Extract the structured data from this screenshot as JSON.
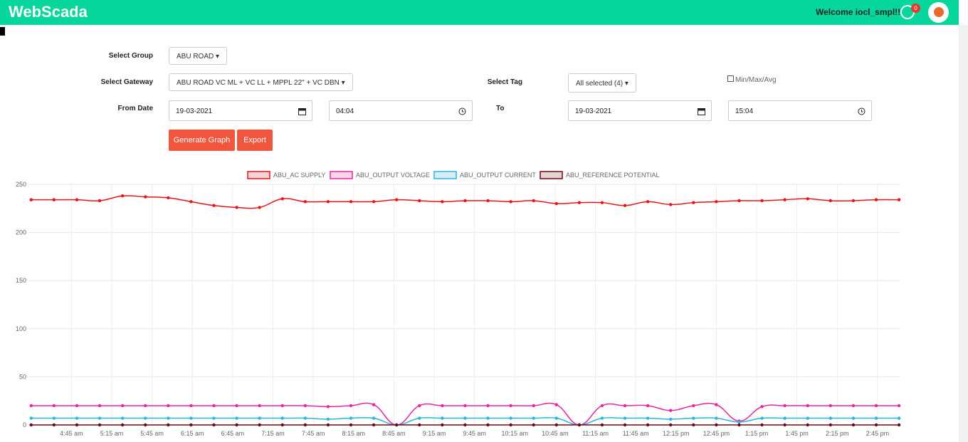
{
  "header": {
    "brand": "WebScada",
    "welcome": "Welcome iocl_smpl!!",
    "badge": 0
  },
  "form": {
    "group_label": "Select Group",
    "group": "ABU ROAD",
    "gateway_label": "Select Gateway",
    "gateway": "ABU ROAD VC ML + VC LL + MPPL 22\" + VC DBN",
    "tag_label": "Select Tag",
    "tag": "All selected (4)",
    "minmax": "Min/Max/Avg",
    "from_label": "From Date",
    "from_date": "19-03-2021",
    "from_time": "04:04",
    "to_label": "To",
    "to_date": "19-03-2021",
    "to_time": "15:04",
    "generate": "Generate Graph",
    "export": "Export"
  },
  "chart_data": {
    "type": "line",
    "grid": true,
    "x": [
      255,
      272,
      289,
      306,
      323,
      340,
      357,
      374,
      391,
      408,
      425,
      442,
      459,
      476,
      493,
      510,
      527,
      544,
      561,
      578,
      595,
      612,
      629,
      646,
      663,
      680,
      697,
      714,
      731,
      748,
      765,
      782,
      799,
      816,
      833,
      850,
      867,
      884,
      901
    ],
    "xlim": [
      253,
      902
    ],
    "xticks": [
      {
        "value": 285,
        "label": "4:45 am"
      },
      {
        "value": 315,
        "label": "5:15 am"
      },
      {
        "value": 345,
        "label": "5:45 am"
      },
      {
        "value": 375,
        "label": "6:15 am"
      },
      {
        "value": 405,
        "label": "6:45 am"
      },
      {
        "value": 435,
        "label": "7:15 am"
      },
      {
        "value": 465,
        "label": "7:45 am"
      },
      {
        "value": 495,
        "label": "8:15 am"
      },
      {
        "value": 525,
        "label": "8:45 am"
      },
      {
        "value": 555,
        "label": "9:15 am"
      },
      {
        "value": 585,
        "label": "9:45 am"
      },
      {
        "value": 615,
        "label": "10:15 am"
      },
      {
        "value": 645,
        "label": "10:45 am"
      },
      {
        "value": 675,
        "label": "11:15 am"
      },
      {
        "value": 705,
        "label": "11:45 am"
      },
      {
        "value": 735,
        "label": "12:15 pm"
      },
      {
        "value": 765,
        "label": "12:45 pm"
      },
      {
        "value": 795,
        "label": "1:15 pm"
      },
      {
        "value": 825,
        "label": "1:45 pm"
      },
      {
        "value": 855,
        "label": "2:15 pm"
      },
      {
        "value": 885,
        "label": "2:45 pm"
      }
    ],
    "ylim": [
      0,
      250
    ],
    "yticks": [
      0,
      50,
      100,
      150,
      200,
      250
    ],
    "series": [
      {
        "name": "ABU_AC SUPPLY",
        "color": "#e8141b",
        "fill": "#f5d3d4",
        "values": [
          234,
          234,
          234,
          233,
          238,
          237,
          236,
          232,
          228,
          226,
          226,
          235,
          232,
          232,
          232,
          232,
          234,
          233,
          232,
          233,
          233,
          232,
          233,
          230,
          231,
          231,
          228,
          232,
          229,
          231,
          232,
          233,
          233,
          234,
          235,
          233,
          233,
          234,
          234
        ]
      },
      {
        "name": "ABU_OUTPUT VOLTAGE",
        "color": "#e8279b",
        "fill": "#f7d6ea",
        "values": [
          20,
          20,
          20,
          20,
          20,
          20,
          20,
          20,
          20,
          20,
          20,
          20,
          20,
          19,
          20,
          21,
          0,
          20,
          20,
          20,
          20,
          20,
          20,
          21,
          0,
          20,
          20,
          20,
          15,
          20,
          21,
          4,
          19,
          20,
          20,
          20,
          20,
          20,
          20
        ]
      },
      {
        "name": "ABU_OUTPUT CURRENT",
        "color": "#2bb5de",
        "fill": "#d6edf5",
        "values": [
          7,
          7,
          7,
          7,
          7,
          7,
          7,
          7,
          7,
          7,
          7,
          7,
          7,
          6,
          7,
          7,
          0,
          7,
          7,
          7,
          7,
          7,
          7,
          7,
          0,
          7,
          7,
          7,
          6,
          7,
          7,
          3,
          7,
          7,
          7,
          7,
          7,
          7,
          7
        ]
      },
      {
        "name": "ABU_REFERENCE POTENTIAL",
        "color": "#6e0b12",
        "fill": "#e4d2d3",
        "values": [
          0,
          0,
          0,
          0,
          0,
          0,
          0,
          0,
          0,
          0,
          0,
          0,
          0,
          0,
          0,
          0,
          0,
          0,
          0,
          0,
          0,
          0,
          0,
          0,
          0,
          0,
          0,
          0,
          0,
          0,
          0,
          0,
          0,
          0,
          0,
          0,
          0,
          0,
          0
        ]
      }
    ]
  }
}
